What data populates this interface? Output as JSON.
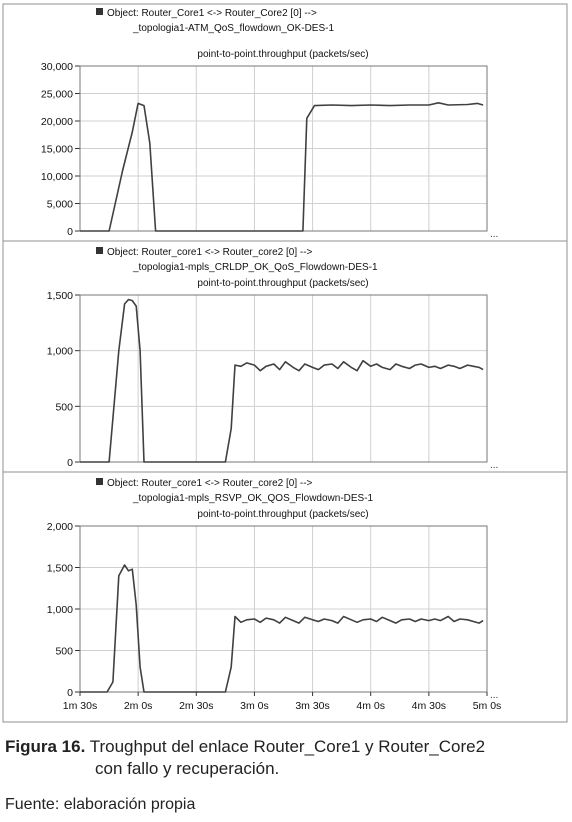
{
  "caption": {
    "label": "Figura 16.",
    "text_line1": "Troughput del enlace Router_Core1 y Router_Core2",
    "text_line2": "con fallo y recuperación."
  },
  "source": "Fuente: elaboración propia",
  "x_axis": {
    "tick_labels": [
      "1m 30s",
      "2m 0s",
      "2m 30s",
      "3m 0s",
      "3m 30s",
      "4m 0s",
      "4m 30s",
      "5m 0s"
    ],
    "range_seconds": [
      90,
      300
    ]
  },
  "colors": {
    "line": "#404040",
    "grid": "#d0d0d0",
    "frame": "#909090",
    "legend_marker": "#333333"
  },
  "chart_data": [
    {
      "type": "line",
      "legend_line1": "Object: Router_Core1 <-> Router_Core2 [0] -->",
      "legend_line2": "_topologia1-ATM_QoS_flowdown_OK-DES-1",
      "metric": "point-to-point.throughput (packets/sec)",
      "yticks": [
        "30,000",
        "25,000",
        "20,000",
        "15,000",
        "10,000",
        "5,000",
        "0"
      ],
      "ylim": [
        0,
        30000
      ],
      "x": [
        90,
        105,
        112,
        117,
        120,
        123,
        126,
        129,
        132,
        135,
        180,
        205,
        207,
        211,
        220,
        230,
        240,
        250,
        260,
        270,
        275,
        280,
        290,
        295,
        298
      ],
      "values": [
        0,
        0,
        11000,
        18000,
        23200,
        22800,
        16000,
        0,
        0,
        0,
        0,
        0,
        20500,
        22800,
        22900,
        22800,
        22900,
        22800,
        22900,
        22900,
        23300,
        22900,
        23000,
        23200,
        22900
      ]
    },
    {
      "type": "line",
      "legend_line1": "Object: Router_core1 <-> Router_core2 [0] -->",
      "legend_line2": "_topologia1-mpls_CRLDP_OK_QoS_Flowdown-DES-1",
      "metric": "point-to-point.throughput (packets/sec)",
      "yticks": [
        "1,500",
        "1,000",
        "500",
        "0"
      ],
      "ylim": [
        0,
        1500
      ],
      "x": [
        90,
        105,
        110,
        113,
        115,
        117,
        119,
        121,
        123,
        126,
        130,
        150,
        165,
        168,
        170,
        173,
        176,
        180,
        183,
        186,
        190,
        193,
        196,
        200,
        203,
        206,
        210,
        213,
        216,
        220,
        223,
        226,
        230,
        233,
        236,
        240,
        243,
        246,
        250,
        253,
        256,
        260,
        263,
        266,
        270,
        273,
        276,
        280,
        283,
        286,
        290,
        293,
        296,
        298
      ],
      "values": [
        0,
        0,
        1000,
        1420,
        1460,
        1450,
        1400,
        1000,
        0,
        0,
        0,
        0,
        0,
        300,
        870,
        860,
        890,
        870,
        820,
        860,
        880,
        830,
        900,
        850,
        820,
        880,
        850,
        830,
        870,
        880,
        840,
        900,
        850,
        820,
        910,
        860,
        880,
        850,
        830,
        880,
        860,
        840,
        870,
        880,
        850,
        860,
        840,
        870,
        860,
        840,
        870,
        860,
        850,
        830
      ]
    },
    {
      "type": "line",
      "legend_line1": "Object: Router_core1 <-> Router_core2 [0] -->",
      "legend_line2": "_topologia1-mpls_RSVP_OK_QOS_Flowdown-DES-1",
      "metric": "point-to-point.throughput (packets/sec)",
      "yticks": [
        "2,000",
        "1,500",
        "1,000",
        "500",
        "0"
      ],
      "ylim": [
        0,
        2000
      ],
      "x": [
        90,
        104,
        107,
        110,
        113,
        115,
        117,
        119,
        121,
        123,
        126,
        130,
        150,
        165,
        168,
        170,
        173,
        176,
        180,
        183,
        186,
        190,
        193,
        196,
        200,
        203,
        206,
        210,
        213,
        216,
        220,
        223,
        226,
        230,
        233,
        236,
        240,
        243,
        246,
        250,
        253,
        256,
        260,
        263,
        266,
        270,
        273,
        276,
        280,
        283,
        286,
        290,
        293,
        296,
        298
      ],
      "values": [
        0,
        0,
        120,
        1400,
        1530,
        1460,
        1480,
        1050,
        300,
        0,
        0,
        0,
        0,
        0,
        300,
        910,
        840,
        870,
        880,
        840,
        890,
        870,
        830,
        900,
        860,
        830,
        900,
        870,
        850,
        880,
        860,
        830,
        910,
        870,
        840,
        870,
        880,
        850,
        900,
        860,
        830,
        870,
        880,
        850,
        880,
        860,
        880,
        860,
        910,
        850,
        880,
        870,
        850,
        830,
        860
      ]
    }
  ]
}
